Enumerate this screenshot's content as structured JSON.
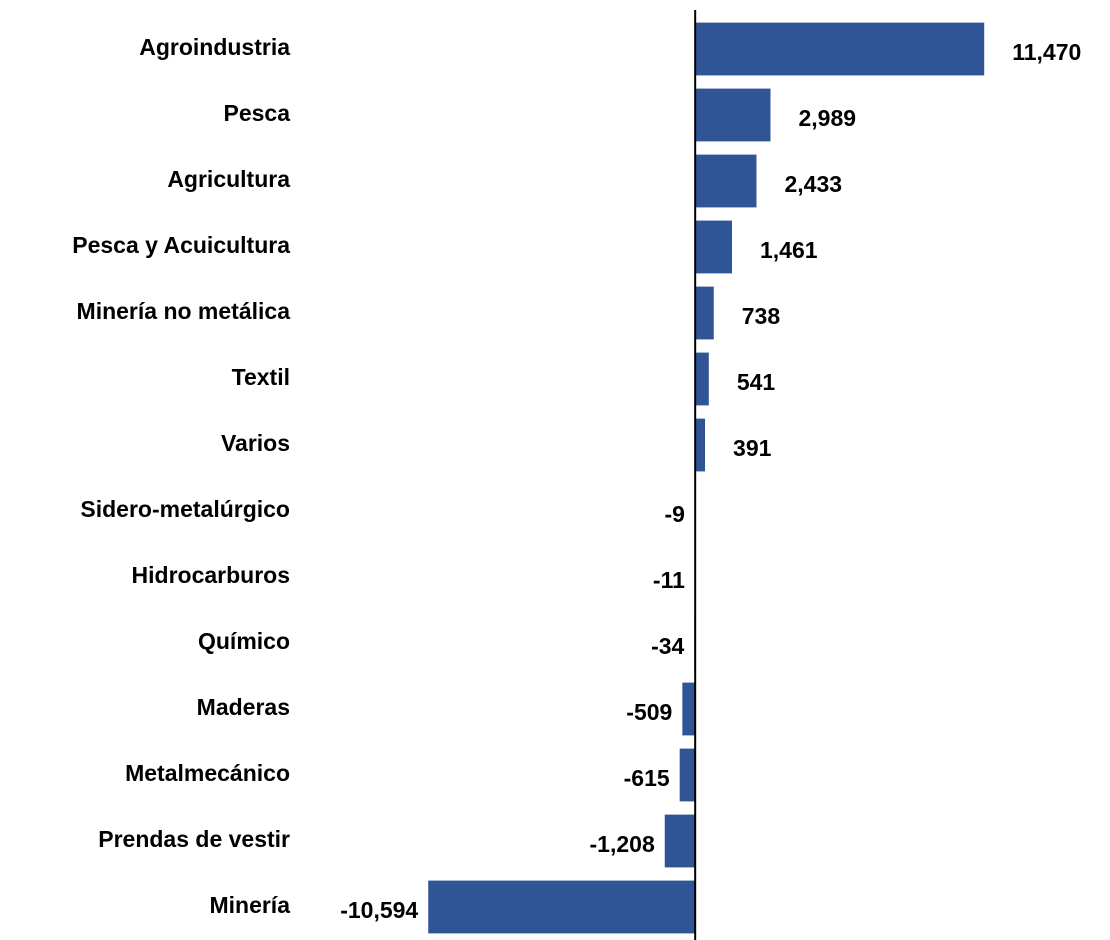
{
  "chart_data": {
    "type": "bar",
    "orientation": "horizontal",
    "categories": [
      "Agroindustria",
      "Pesca",
      "Agricultura",
      "Pesca y Acuicultura",
      "Minería no metálica",
      "Textil",
      "Varios",
      "Sidero-metalúrgico",
      "Hidrocarburos",
      "Químico",
      "Maderas",
      "Metalmecánico",
      "Prendas de vestir",
      "Minería"
    ],
    "values": [
      11470,
      2989,
      2433,
      1461,
      738,
      541,
      391,
      -9,
      -11,
      -34,
      -509,
      -615,
      -1208,
      -10594
    ],
    "value_labels": [
      "11,470",
      "2,989",
      "2,433",
      "1,461",
      "738",
      "541",
      "391",
      "-9",
      "-11",
      "-34",
      "-509",
      "-615",
      "-1,208",
      "-10,594"
    ],
    "color": "#2f5597",
    "xlim": [
      -11000,
      11700
    ]
  }
}
